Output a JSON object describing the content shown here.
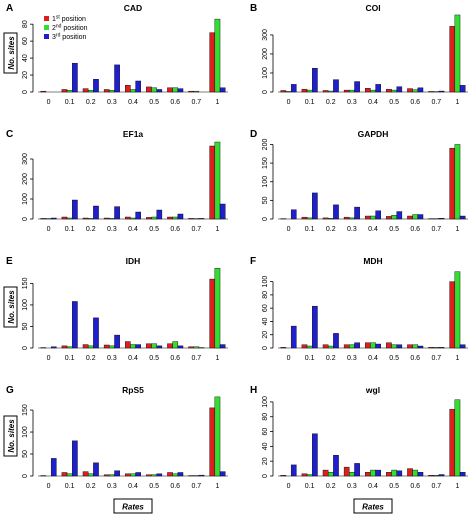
{
  "figure": {
    "shared_xlabel": "Rates",
    "shared_ylabel": "No. sites",
    "legend": [
      {
        "label_main": "1",
        "label_sup": "st",
        "label_rest": " position",
        "color": "#dd1f1f"
      },
      {
        "label_main": "2",
        "label_sup": "nd",
        "label_rest": " position",
        "color": "#33dd33"
      },
      {
        "label_main": "3",
        "label_sup": "rd",
        "label_rest": " position",
        "color": "#1f1fcc"
      }
    ]
  },
  "chart_data": [
    {
      "letter": "A",
      "type": "bar",
      "title": "CAD",
      "categories": [
        "0",
        "0.1",
        "0.2",
        "0.3",
        "0.4",
        "0.5",
        "0.6",
        "0.7",
        "1"
      ],
      "yticks": [
        0,
        20,
        40,
        60,
        80
      ],
      "ylim": [
        0,
        92
      ],
      "series": [
        {
          "name": "1st position",
          "values": [
            1,
            3,
            4,
            3,
            8,
            6,
            5,
            1,
            70
          ]
        },
        {
          "name": "2nd position",
          "values": [
            0,
            2,
            2,
            2,
            3,
            5,
            5,
            1,
            86
          ]
        },
        {
          "name": "3rd position",
          "values": [
            0,
            34,
            15,
            32,
            13,
            3,
            4,
            0,
            5
          ]
        }
      ]
    },
    {
      "letter": "B",
      "type": "bar",
      "title": "COI",
      "categories": [
        "0",
        "0.1",
        "0.2",
        "0.3",
        "0.4",
        "0.5",
        "0.6",
        "0.7",
        "1"
      ],
      "yticks": [
        0,
        100,
        200,
        300
      ],
      "ylim": [
        0,
        410
      ],
      "series": [
        {
          "name": "1st position",
          "values": [
            8,
            15,
            8,
            10,
            20,
            15,
            18,
            3,
            345
          ]
        },
        {
          "name": "2nd position",
          "values": [
            3,
            10,
            5,
            10,
            10,
            10,
            12,
            2,
            405
          ]
        },
        {
          "name": "3rd position",
          "values": [
            40,
            125,
            65,
            55,
            40,
            28,
            22,
            5,
            35
          ]
        }
      ]
    },
    {
      "letter": "C",
      "type": "bar",
      "title": "EF1a",
      "categories": [
        "0",
        "0.1",
        "0.2",
        "0.3",
        "0.4",
        "0.5",
        "0.6",
        "0.7",
        "1"
      ],
      "yticks": [
        0,
        100,
        200,
        300
      ],
      "ylim": [
        0,
        395
      ],
      "series": [
        {
          "name": "1st position",
          "values": [
            3,
            10,
            5,
            5,
            10,
            8,
            10,
            3,
            365
          ]
        },
        {
          "name": "2nd position",
          "values": [
            2,
            5,
            3,
            3,
            5,
            10,
            10,
            2,
            385
          ]
        },
        {
          "name": "3rd position",
          "values": [
            5,
            95,
            65,
            62,
            35,
            45,
            25,
            3,
            75
          ]
        }
      ]
    },
    {
      "letter": "D",
      "type": "bar",
      "title": "GAPDH",
      "categories": [
        "0",
        "0.1",
        "0.2",
        "0.3",
        "0.4",
        "0.5",
        "0.6",
        "0.7",
        "1"
      ],
      "yticks": [
        0,
        50,
        100,
        150,
        200
      ],
      "ylim": [
        0,
        212
      ],
      "series": [
        {
          "name": "1st position",
          "values": [
            1,
            5,
            3,
            5,
            8,
            7,
            8,
            1,
            190
          ]
        },
        {
          "name": "2nd position",
          "values": [
            0,
            3,
            2,
            3,
            8,
            10,
            12,
            1,
            200
          ]
        },
        {
          "name": "3rd position",
          "values": [
            25,
            70,
            38,
            32,
            22,
            20,
            12,
            2,
            8
          ]
        }
      ]
    },
    {
      "letter": "E",
      "type": "bar",
      "title": "IDH",
      "categories": [
        "0",
        "0.1",
        "0.2",
        "0.3",
        "0.4",
        "0.5",
        "0.6",
        "0.7",
        "1"
      ],
      "yticks": [
        0,
        50,
        100,
        150
      ],
      "ylim": [
        0,
        188
      ],
      "series": [
        {
          "name": "1st position",
          "values": [
            1,
            5,
            8,
            7,
            15,
            10,
            10,
            3,
            160
          ]
        },
        {
          "name": "2nd position",
          "values": [
            0,
            3,
            5,
            5,
            8,
            10,
            15,
            3,
            185
          ]
        },
        {
          "name": "3rd position",
          "values": [
            3,
            108,
            70,
            30,
            8,
            5,
            5,
            1,
            8
          ]
        }
      ]
    },
    {
      "letter": "F",
      "type": "bar",
      "title": "MDH",
      "categories": [
        "0",
        "0.1",
        "0.2",
        "0.3",
        "0.4",
        "0.5",
        "0.6",
        "0.7",
        "1"
      ],
      "yticks": [
        0,
        20,
        40,
        60,
        80,
        100
      ],
      "ylim": [
        0,
        122
      ],
      "series": [
        {
          "name": "1st position",
          "values": [
            1,
            5,
            5,
            5,
            8,
            8,
            5,
            1,
            100
          ]
        },
        {
          "name": "2nd position",
          "values": [
            0,
            3,
            3,
            5,
            8,
            5,
            5,
            1,
            115
          ]
        },
        {
          "name": "3rd position",
          "values": [
            33,
            63,
            22,
            8,
            6,
            5,
            3,
            1,
            5
          ]
        }
      ]
    },
    {
      "letter": "G",
      "type": "bar",
      "title": "RpS5",
      "categories": [
        "0",
        "0.1",
        "0.2",
        "0.3",
        "0.4",
        "0.5",
        "0.6",
        "0.7",
        "1"
      ],
      "yticks": [
        0,
        50,
        100,
        150
      ],
      "ylim": [
        0,
        182
      ],
      "series": [
        {
          "name": "1st position",
          "values": [
            1,
            8,
            10,
            3,
            5,
            3,
            8,
            1,
            155
          ]
        },
        {
          "name": "2nd position",
          "values": [
            0,
            5,
            5,
            3,
            5,
            3,
            5,
            1,
            180
          ]
        },
        {
          "name": "3rd position",
          "values": [
            40,
            80,
            30,
            12,
            8,
            5,
            8,
            2,
            10
          ]
        }
      ]
    },
    {
      "letter": "H",
      "type": "bar",
      "title": "wgl",
      "categories": [
        "0",
        "0.1",
        "0.2",
        "0.3",
        "0.4",
        "0.5",
        "0.6",
        "0.7",
        "1"
      ],
      "yticks": [
        0,
        20,
        40,
        60,
        80,
        100
      ],
      "ylim": [
        0,
        108
      ],
      "series": [
        {
          "name": "1st position",
          "values": [
            1,
            3,
            8,
            12,
            5,
            5,
            10,
            1,
            90
          ]
        },
        {
          "name": "2nd position",
          "values": [
            0,
            2,
            5,
            5,
            8,
            8,
            8,
            1,
            103
          ]
        },
        {
          "name": "3rd position",
          "values": [
            15,
            57,
            28,
            17,
            8,
            7,
            5,
            2,
            5
          ]
        }
      ]
    }
  ]
}
